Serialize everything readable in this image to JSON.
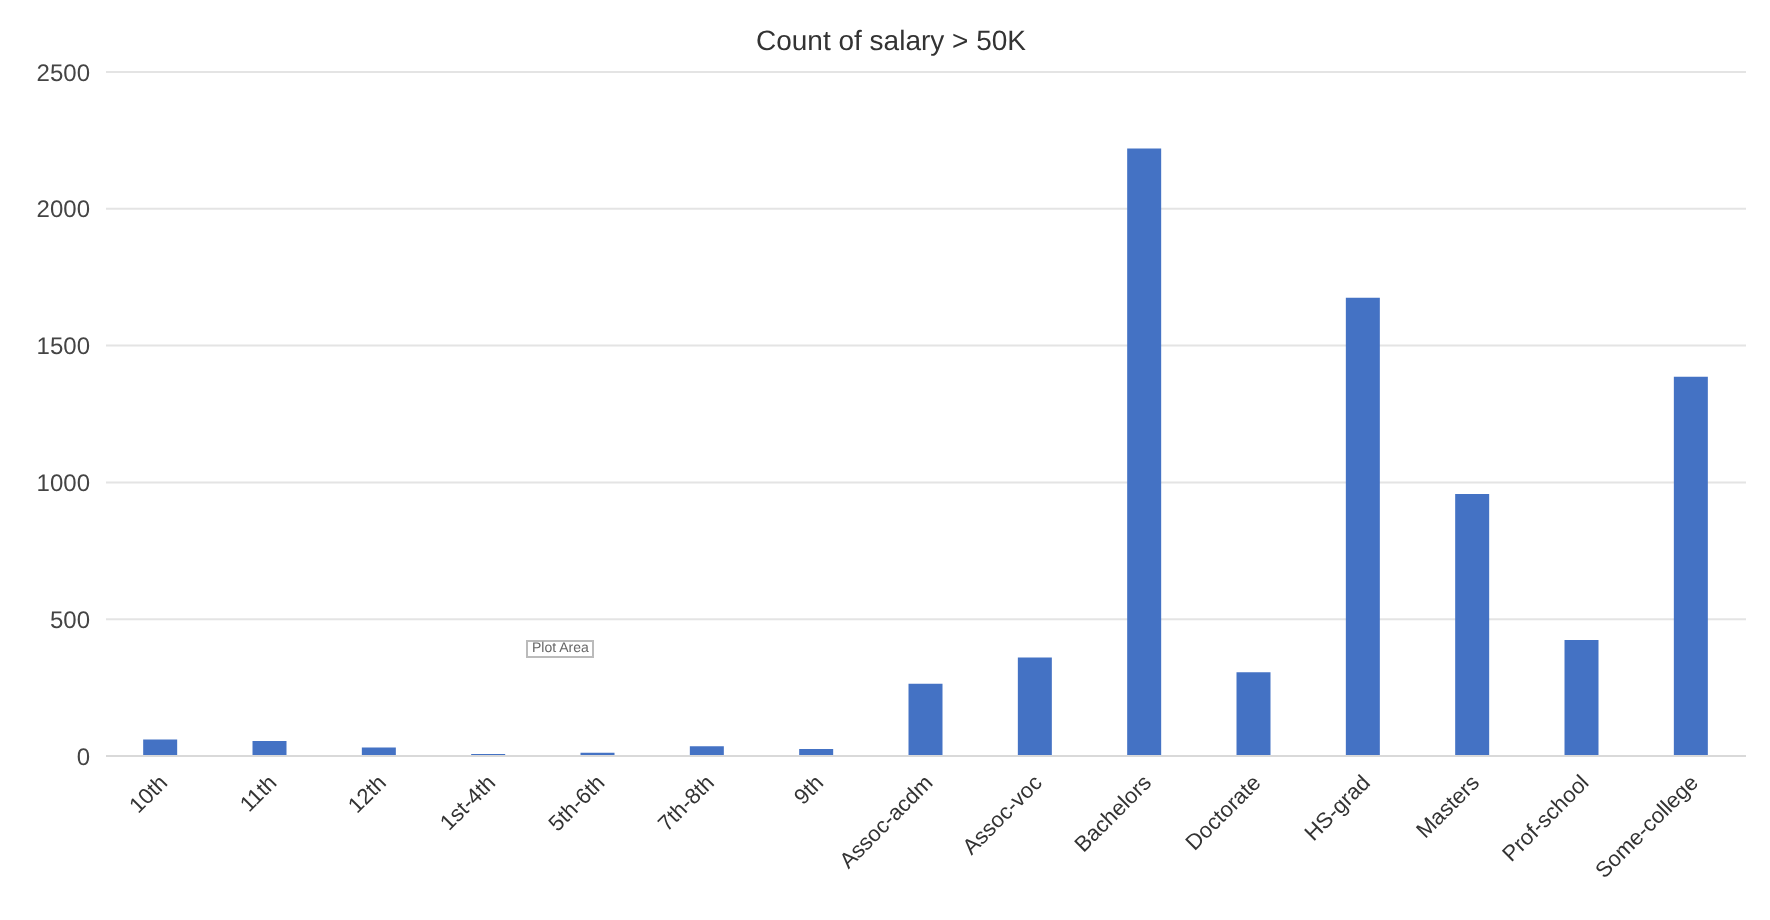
{
  "chart_data": {
    "type": "bar",
    "title": "Count of salary > 50K",
    "categories": [
      "10th",
      "11th",
      "12th",
      "1st-4th",
      "5th-6th",
      "7th-8th",
      "9th",
      "Assoc-acdm",
      "Assoc-voc",
      "Bachelors",
      "Doctorate",
      "HS-grad",
      "Masters",
      "Prof-school",
      "Some-college"
    ],
    "values": [
      60,
      55,
      31,
      7,
      12,
      36,
      26,
      264,
      360,
      2220,
      306,
      1675,
      958,
      424,
      1386
    ],
    "color": "#4472c4",
    "ylim": [
      0,
      2500
    ],
    "yticks": [
      0,
      500,
      1000,
      1500,
      2000,
      2500
    ],
    "grid": "y",
    "annotations": [
      "Plot Area"
    ]
  }
}
